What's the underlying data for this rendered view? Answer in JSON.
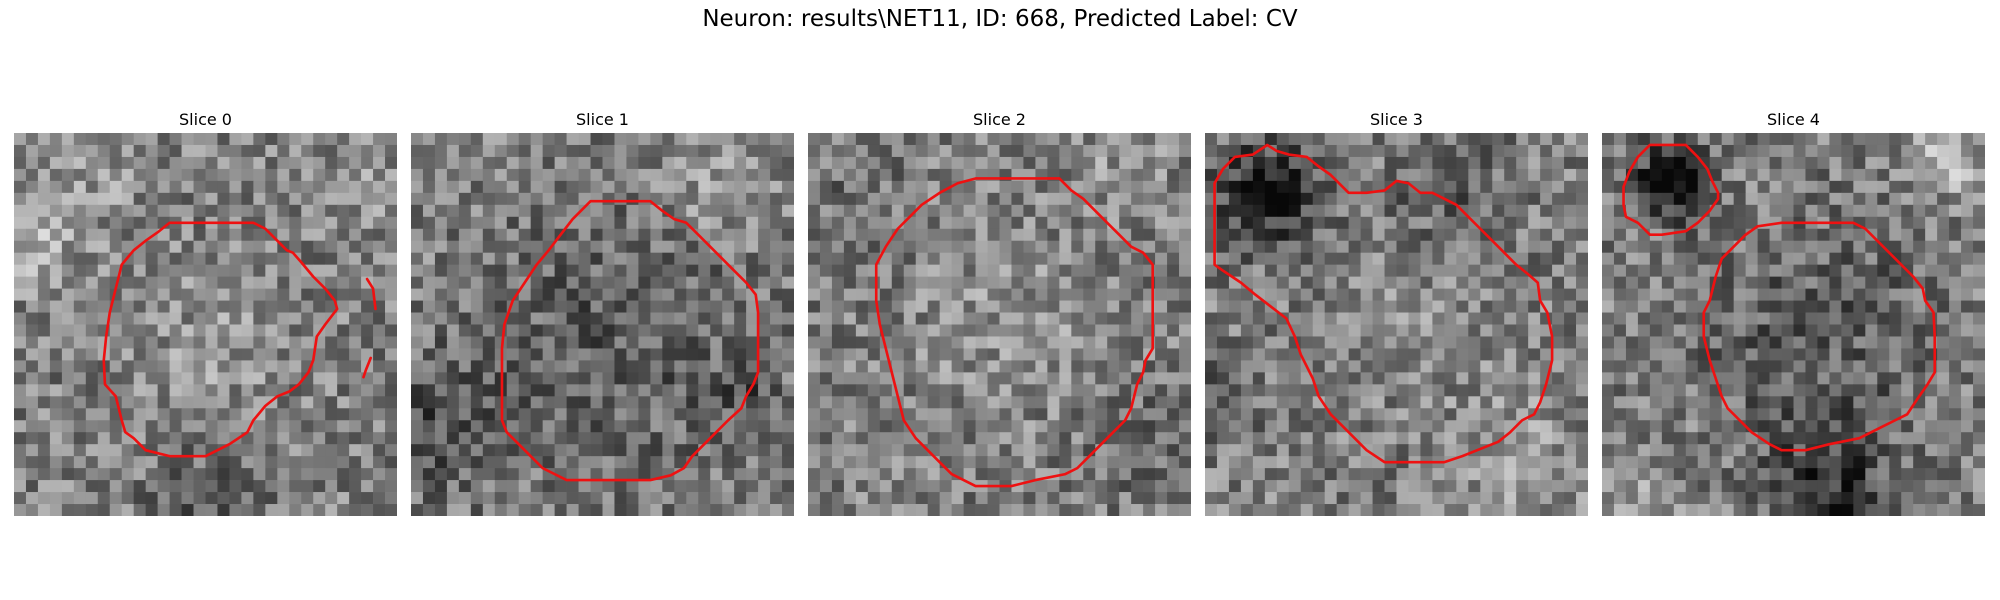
{
  "figure": {
    "title": "Neuron: results\\NET11, ID: 668, Predicted Label: CV"
  },
  "panels": [
    {
      "title": "Slice 0",
      "image": "grayscale-noise-microscopy-patch",
      "contours": [
        [
          [
            16,
            7.5
          ],
          [
            20,
            7.5
          ],
          [
            21,
            8
          ],
          [
            22,
            9
          ],
          [
            22.8,
            9.8
          ],
          [
            23.3,
            10
          ],
          [
            24,
            10.8
          ],
          [
            25,
            12
          ],
          [
            26,
            13
          ],
          [
            26.8,
            14
          ],
          [
            27,
            14.7
          ],
          [
            26,
            16
          ],
          [
            25.3,
            17
          ],
          [
            25,
            19
          ],
          [
            24.6,
            20
          ],
          [
            23.8,
            21
          ],
          [
            23,
            21.6
          ],
          [
            22,
            22
          ],
          [
            21,
            22.8
          ],
          [
            20,
            24
          ],
          [
            19.5,
            25
          ],
          [
            18,
            26
          ],
          [
            16,
            27
          ],
          [
            13,
            27
          ],
          [
            11,
            26.5
          ],
          [
            10,
            25.5
          ],
          [
            9.3,
            25
          ],
          [
            9,
            24
          ],
          [
            8.5,
            22
          ],
          [
            7.6,
            21
          ],
          [
            7.5,
            19
          ],
          [
            7.7,
            17
          ],
          [
            8,
            15
          ],
          [
            8.5,
            13
          ],
          [
            9,
            11
          ],
          [
            10,
            9.8
          ],
          [
            11,
            9
          ],
          [
            12,
            8.3
          ],
          [
            13,
            7.5
          ],
          [
            16,
            7.5
          ]
        ],
        [
          [
            29.5,
            12.2
          ],
          [
            30,
            13
          ],
          [
            30.2,
            14.7
          ]
        ],
        [
          [
            29.8,
            18.8
          ],
          [
            29.4,
            19.8
          ],
          [
            29.2,
            20.4
          ]
        ]
      ]
    },
    {
      "title": "Slice 1",
      "image": "grayscale-noise-microscopy-patch",
      "contours": [
        [
          [
            15,
            5.7
          ],
          [
            20,
            5.7
          ],
          [
            21,
            6.5
          ],
          [
            22,
            7.2
          ],
          [
            23,
            7.5
          ],
          [
            24,
            8.5
          ],
          [
            25,
            9.5
          ],
          [
            26,
            10.5
          ],
          [
            27,
            11.5
          ],
          [
            28,
            12.5
          ],
          [
            28.8,
            13.5
          ],
          [
            29,
            15
          ],
          [
            29,
            20
          ],
          [
            28.6,
            21
          ],
          [
            28,
            22
          ],
          [
            27.6,
            23
          ],
          [
            26.5,
            24
          ],
          [
            25.5,
            25
          ],
          [
            24.5,
            26
          ],
          [
            23.5,
            27
          ],
          [
            22.8,
            28
          ],
          [
            21.7,
            28.6
          ],
          [
            20,
            29
          ],
          [
            16,
            29
          ],
          [
            13,
            29
          ],
          [
            11,
            28
          ],
          [
            10,
            27
          ],
          [
            9,
            26
          ],
          [
            8,
            25
          ],
          [
            7.6,
            24
          ],
          [
            7.6,
            21
          ],
          [
            7.6,
            18
          ],
          [
            7.8,
            16
          ],
          [
            8.5,
            14
          ],
          [
            9.5,
            12.5
          ],
          [
            10.5,
            11
          ],
          [
            11.5,
            9.8
          ],
          [
            12.5,
            8.5
          ],
          [
            13.5,
            7.2
          ],
          [
            15,
            5.7
          ]
        ]
      ]
    },
    {
      "title": "Slice 2",
      "image": "grayscale-noise-microscopy-patch",
      "contours": [
        [
          [
            14,
            3.8
          ],
          [
            21,
            3.8
          ],
          [
            22,
            4.8
          ],
          [
            23,
            5.5
          ],
          [
            24,
            6.5
          ],
          [
            25,
            7.5
          ],
          [
            26,
            8.5
          ],
          [
            27,
            9.5
          ],
          [
            28,
            10
          ],
          [
            28.8,
            11
          ],
          [
            28.8,
            18
          ],
          [
            28.2,
            19
          ],
          [
            28,
            20
          ],
          [
            27.5,
            21
          ],
          [
            27,
            23
          ],
          [
            26.5,
            24
          ],
          [
            25.5,
            25
          ],
          [
            24.5,
            26
          ],
          [
            23.5,
            27
          ],
          [
            22.5,
            28
          ],
          [
            21.5,
            28.5
          ],
          [
            19,
            29
          ],
          [
            17,
            29.5
          ],
          [
            14,
            29.5
          ],
          [
            12,
            28.5
          ],
          [
            11,
            27.5
          ],
          [
            10,
            26.5
          ],
          [
            9,
            25.5
          ],
          [
            8,
            24
          ],
          [
            7.5,
            22
          ],
          [
            7,
            20
          ],
          [
            6.5,
            18
          ],
          [
            6,
            16
          ],
          [
            5.7,
            14
          ],
          [
            5.7,
            11
          ],
          [
            6.5,
            9.5
          ],
          [
            7.5,
            8
          ],
          [
            8.5,
            7
          ],
          [
            9.5,
            6
          ],
          [
            11,
            5
          ],
          [
            12.5,
            4.2
          ],
          [
            14,
            3.8
          ]
        ]
      ]
    },
    {
      "title": "Slice 3",
      "image": "grayscale-noise-microscopy-patch",
      "contours": [
        [
          [
            0.8,
            4.2
          ],
          [
            1.5,
            3
          ],
          [
            2.5,
            2
          ],
          [
            4,
            1.8
          ],
          [
            5.2,
            1
          ],
          [
            6,
            1.5
          ],
          [
            7,
            1.8
          ],
          [
            8.5,
            2
          ],
          [
            9.5,
            2.8
          ],
          [
            10.5,
            3.5
          ],
          [
            12,
            5
          ],
          [
            13.5,
            5
          ],
          [
            15,
            4.8
          ],
          [
            16,
            4
          ],
          [
            17,
            4.2
          ],
          [
            18,
            5
          ],
          [
            19,
            5
          ],
          [
            20,
            5.5
          ],
          [
            21,
            6
          ],
          [
            22,
            7
          ],
          [
            23,
            8
          ],
          [
            24,
            9
          ],
          [
            25,
            10
          ],
          [
            26,
            11
          ],
          [
            27,
            11.8
          ],
          [
            27.8,
            12.5
          ],
          [
            28,
            14
          ],
          [
            28.6,
            15
          ],
          [
            29,
            17
          ],
          [
            29,
            19
          ],
          [
            28.5,
            21
          ],
          [
            28,
            22.5
          ],
          [
            27.5,
            23.5
          ],
          [
            26.5,
            24
          ],
          [
            25.5,
            25
          ],
          [
            24.5,
            25.8
          ],
          [
            23.5,
            26.2
          ],
          [
            21.5,
            27
          ],
          [
            20,
            27.5
          ],
          [
            17,
            27.5
          ],
          [
            15,
            27.5
          ],
          [
            13.5,
            26.5
          ],
          [
            12.5,
            25.5
          ],
          [
            11.5,
            24.5
          ],
          [
            10.5,
            23.5
          ],
          [
            9.5,
            22
          ],
          [
            9,
            20.5
          ],
          [
            8,
            18.5
          ],
          [
            7.5,
            17
          ],
          [
            6.8,
            15.5
          ],
          [
            5.5,
            14.5
          ],
          [
            4.2,
            13.5
          ],
          [
            3,
            12.5
          ],
          [
            1.5,
            11.5
          ],
          [
            0.8,
            11
          ],
          [
            0.8,
            7
          ],
          [
            0.8,
            4.2
          ]
        ]
      ]
    },
    {
      "title": "Slice 4",
      "image": "grayscale-noise-microscopy-patch",
      "contours": [
        [
          [
            4,
            1
          ],
          [
            7,
            1
          ],
          [
            8,
            2
          ],
          [
            8.8,
            3
          ],
          [
            9.2,
            4
          ],
          [
            9.7,
            5
          ],
          [
            9.7,
            5.5
          ],
          [
            9,
            6.5
          ],
          [
            8,
            7.5
          ],
          [
            7,
            8.2
          ],
          [
            5,
            8.5
          ],
          [
            4,
            8.5
          ],
          [
            3,
            7.5
          ],
          [
            2,
            7
          ],
          [
            1.8,
            6
          ],
          [
            1.8,
            4.5
          ],
          [
            2.3,
            3.2
          ],
          [
            3,
            2
          ],
          [
            4,
            1
          ]
        ],
        [
          [
            15,
            7.5
          ],
          [
            21,
            7.5
          ],
          [
            22,
            8
          ],
          [
            23,
            9
          ],
          [
            24,
            10
          ],
          [
            25,
            11
          ],
          [
            26,
            12
          ],
          [
            26.8,
            13
          ],
          [
            27,
            14
          ],
          [
            27.7,
            15
          ],
          [
            27.8,
            17
          ],
          [
            27.8,
            19
          ],
          [
            27.8,
            20
          ],
          [
            27.2,
            21
          ],
          [
            26.5,
            22
          ],
          [
            25.5,
            23.5
          ],
          [
            24.5,
            24
          ],
          [
            23.5,
            24.5
          ],
          [
            22.5,
            25
          ],
          [
            21.5,
            25.5
          ],
          [
            20,
            25.8
          ],
          [
            19,
            26
          ],
          [
            17,
            26.5
          ],
          [
            15,
            26.5
          ],
          [
            14,
            26
          ],
          [
            12.5,
            25
          ],
          [
            11.5,
            24
          ],
          [
            10.5,
            23
          ],
          [
            10,
            22
          ],
          [
            9.5,
            20.5
          ],
          [
            9,
            19
          ],
          [
            8.5,
            17
          ],
          [
            8.5,
            15
          ],
          [
            9,
            14
          ],
          [
            9.5,
            12
          ],
          [
            10,
            10.5
          ],
          [
            11,
            9.5
          ],
          [
            12,
            8.5
          ],
          [
            13,
            7.8
          ],
          [
            15,
            7.5
          ]
        ]
      ]
    }
  ]
}
